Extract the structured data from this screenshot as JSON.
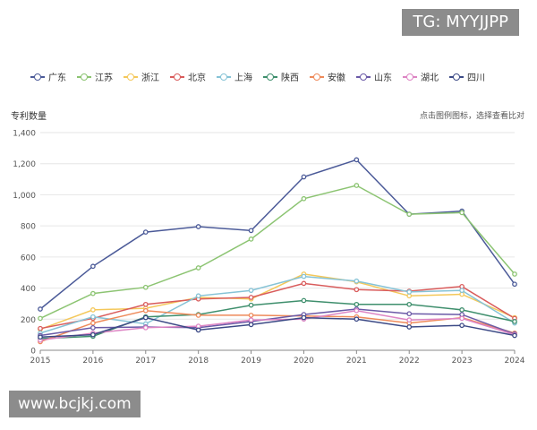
{
  "watermarks": {
    "top": "TG: MYYJJPP",
    "bottom": "www.bcjkj.com"
  },
  "chart_data": {
    "type": "line",
    "title": "",
    "ylabel": "专利数量",
    "hint": "点击图例图标，选择查看比对",
    "xlabel": "",
    "x": [
      "2015",
      "2016",
      "2017",
      "2018",
      "2019",
      "2020",
      "2021",
      "2022",
      "2023",
      "2024"
    ],
    "ylim": [
      0,
      1400
    ],
    "yticks": [
      "0",
      "200",
      "400",
      "600",
      "800",
      "1,000",
      "1,200",
      "1,400"
    ],
    "grid": true,
    "legend_position": "top-left",
    "series": [
      {
        "name": "广东",
        "color": "#4b5a98",
        "values": [
          265,
          540,
          760,
          795,
          770,
          1115,
          1225,
          875,
          895,
          425
        ]
      },
      {
        "name": "江苏",
        "color": "#8cc472",
        "values": [
          205,
          365,
          405,
          530,
          715,
          975,
          1060,
          875,
          885,
          490
        ]
      },
      {
        "name": "浙江",
        "color": "#f4c85b",
        "values": [
          135,
          260,
          270,
          340,
          330,
          490,
          440,
          350,
          360,
          210
        ]
      },
      {
        "name": "北京",
        "color": "#d95c5c",
        "values": [
          140,
          205,
          295,
          330,
          340,
          430,
          390,
          380,
          410,
          205
        ]
      },
      {
        "name": "上海",
        "color": "#86c3d6",
        "values": [
          110,
          215,
          170,
          350,
          385,
          475,
          445,
          375,
          385,
          175
        ]
      },
      {
        "name": "陕西",
        "color": "#3f8f6d",
        "values": [
          75,
          90,
          215,
          230,
          290,
          320,
          295,
          295,
          260,
          185
        ]
      },
      {
        "name": "安徽",
        "color": "#ee8a5a",
        "values": [
          55,
          175,
          255,
          225,
          225,
          220,
          215,
          175,
          210,
          110
        ]
      },
      {
        "name": "山东",
        "color": "#6b5aa7",
        "values": [
          95,
          145,
          150,
          145,
          185,
          230,
          265,
          235,
          230,
          105
        ]
      },
      {
        "name": "湖北",
        "color": "#dd85c4",
        "values": [
          65,
          110,
          145,
          155,
          195,
          200,
          255,
          195,
          205,
          100
        ]
      },
      {
        "name": "四川",
        "color": "#3c4a86",
        "values": [
          85,
          100,
          210,
          130,
          165,
          210,
          200,
          150,
          160,
          95
        ]
      }
    ]
  }
}
